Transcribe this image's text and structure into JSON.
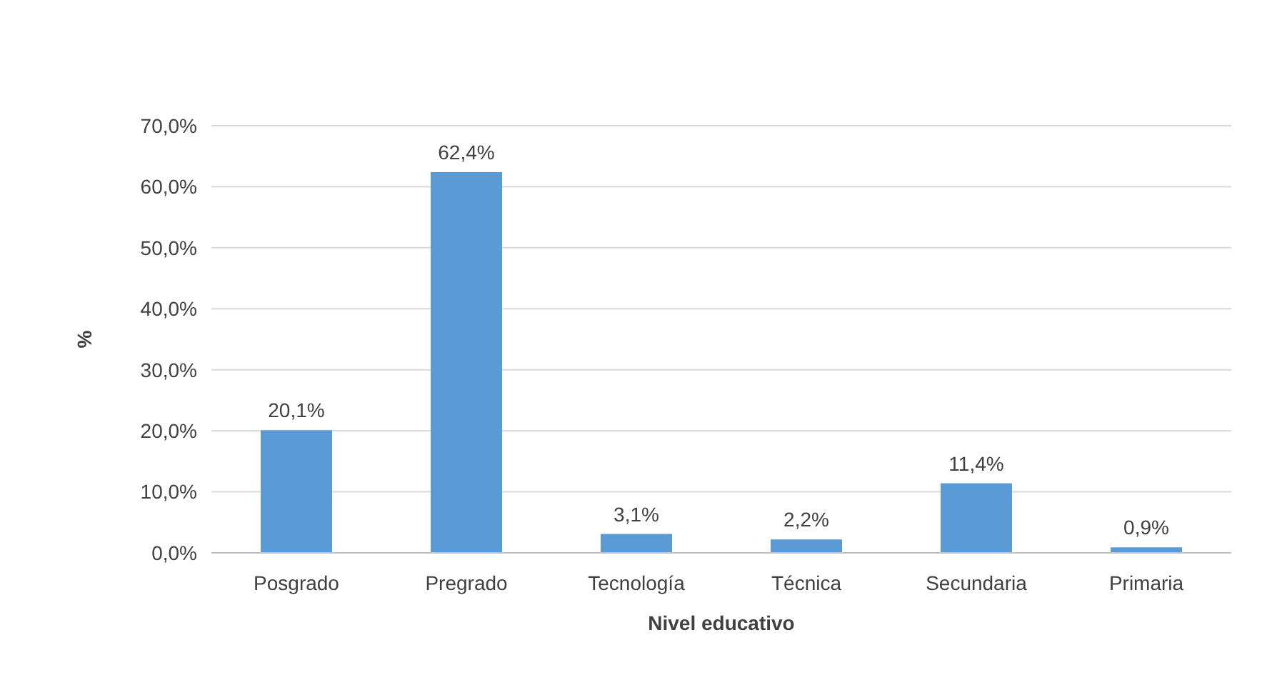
{
  "chart_data": {
    "type": "bar",
    "xlabel": "Nivel educativo",
    "ylabel": "%",
    "categories": [
      "Posgrado",
      "Pregrado",
      "Tecnología",
      "Técnica",
      "Secundaria",
      "Primaria"
    ],
    "values": [
      20.1,
      62.4,
      3.1,
      2.2,
      11.4,
      0.9
    ],
    "value_labels": [
      "20,1%",
      "62,4%",
      "3,1%",
      "2,2%",
      "11,4%",
      "0,9%"
    ],
    "color": "#5b9bd5",
    "ylim": [
      0,
      70
    ],
    "yticks": [
      {
        "value": 0,
        "label": "0,0%"
      },
      {
        "value": 10,
        "label": "10,0%"
      },
      {
        "value": 20,
        "label": "20,0%"
      },
      {
        "value": 30,
        "label": "30,0%"
      },
      {
        "value": 40,
        "label": "40,0%"
      },
      {
        "value": 50,
        "label": "50,0%"
      },
      {
        "value": 60,
        "label": "60,0%"
      },
      {
        "value": 70,
        "label": "70,0%"
      }
    ],
    "grid": "y"
  }
}
